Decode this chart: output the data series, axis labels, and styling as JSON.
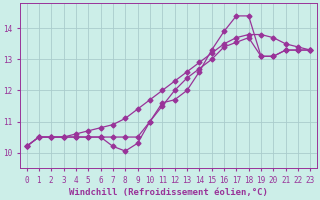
{
  "background_color": "#cceee8",
  "grid_color": "#aacccc",
  "line_color": "#993399",
  "marker": "D",
  "marker_size": 2.5,
  "linewidth": 0.9,
  "xlabel": "Windchill (Refroidissement éolien,°C)",
  "xlabel_fontsize": 6.5,
  "tick_fontsize": 5.5,
  "xlim": [
    -0.5,
    23.5
  ],
  "ylim": [
    9.5,
    14.8
  ],
  "yticks": [
    10,
    11,
    12,
    13,
    14
  ],
  "xticks": [
    0,
    1,
    2,
    3,
    4,
    5,
    6,
    7,
    8,
    9,
    10,
    11,
    12,
    13,
    14,
    15,
    16,
    17,
    18,
    19,
    20,
    21,
    22,
    23
  ],
  "series": [
    [
      10.2,
      10.5,
      10.5,
      10.5,
      10.5,
      10.5,
      10.5,
      10.2,
      10.05,
      10.3,
      11.0,
      11.6,
      11.7,
      12.0,
      12.6,
      13.3,
      13.9,
      14.4,
      14.4,
      13.1,
      13.1,
      13.3,
      13.3,
      13.3
    ],
    [
      10.2,
      10.5,
      10.5,
      10.5,
      10.5,
      10.5,
      10.5,
      10.5,
      10.5,
      10.5,
      11.0,
      11.5,
      12.0,
      12.4,
      12.7,
      13.0,
      13.4,
      13.55,
      13.7,
      13.1,
      13.1,
      13.3,
      13.3,
      13.3
    ],
    [
      10.2,
      10.5,
      10.5,
      10.5,
      10.6,
      10.7,
      10.8,
      10.9,
      11.1,
      11.4,
      11.7,
      12.0,
      12.3,
      12.6,
      12.9,
      13.2,
      13.5,
      13.7,
      13.8,
      13.8,
      13.7,
      13.5,
      13.4,
      13.3
    ]
  ]
}
